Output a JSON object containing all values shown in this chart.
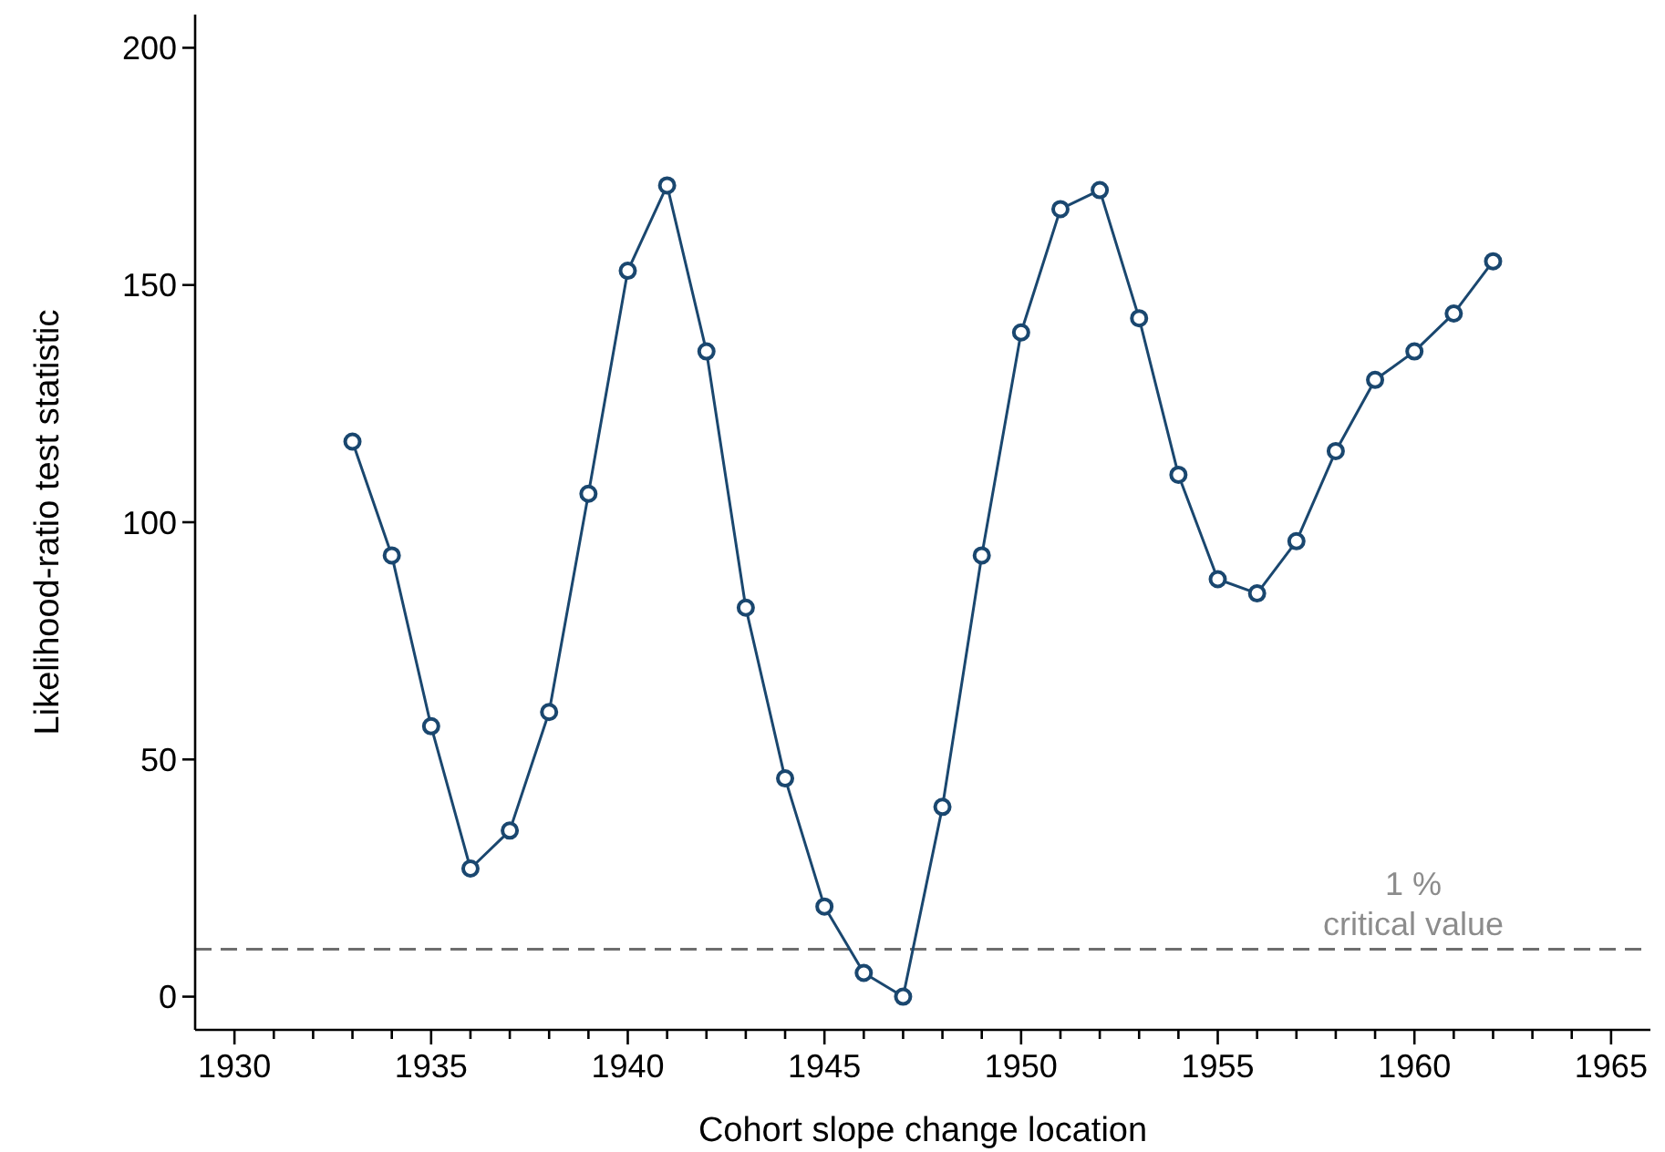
{
  "chart_data": {
    "type": "line",
    "xlabel": "Cohort slope change location",
    "ylabel": "Likelihood-ratio test statistic",
    "x": [
      1933,
      1934,
      1935,
      1936,
      1937,
      1938,
      1939,
      1940,
      1941,
      1942,
      1943,
      1944,
      1945,
      1946,
      1947,
      1948,
      1949,
      1950,
      1951,
      1952,
      1953,
      1954,
      1955,
      1956,
      1957,
      1958,
      1959,
      1960,
      1961,
      1962
    ],
    "series": [
      {
        "color": "#1a476f",
        "values": [
          117,
          93,
          57,
          27,
          35,
          60,
          106,
          153,
          171,
          136,
          82,
          46,
          19,
          5,
          0,
          40,
          93,
          140,
          166,
          170,
          143,
          110,
          88,
          85,
          96,
          115,
          130,
          136,
          144,
          155
        ]
      }
    ],
    "xlim": [
      1929,
      1966
    ],
    "ylim": [
      -7,
      207
    ],
    "xticks": [
      1930,
      {
        "value": 1931,
        "label": null
      },
      {
        "value": 1932,
        "label": null
      },
      {
        "value": 1933,
        "label": null
      },
      {
        "value": 1934,
        "label": null
      },
      1935,
      {
        "value": 1936,
        "label": null
      },
      {
        "value": 1937,
        "label": null
      },
      {
        "value": 1938,
        "label": null
      },
      {
        "value": 1939,
        "label": null
      },
      1940,
      {
        "value": 1941,
        "label": null
      },
      {
        "value": 1942,
        "label": null
      },
      {
        "value": 1943,
        "label": null
      },
      {
        "value": 1944,
        "label": null
      },
      1945,
      {
        "value": 1946,
        "label": null
      },
      {
        "value": 1947,
        "label": null
      },
      {
        "value": 1948,
        "label": null
      },
      {
        "value": 1949,
        "label": null
      },
      1950,
      {
        "value": 1951,
        "label": null
      },
      {
        "value": 1952,
        "label": null
      },
      {
        "value": 1953,
        "label": null
      },
      {
        "value": 1954,
        "label": null
      },
      1955,
      {
        "value": 1956,
        "label": null
      },
      {
        "value": 1957,
        "label": null
      },
      {
        "value": 1958,
        "label": null
      },
      {
        "value": 1959,
        "label": null
      },
      1960,
      {
        "value": 1961,
        "label": null
      },
      {
        "value": 1962,
        "label": null
      },
      {
        "value": 1963,
        "label": null
      },
      {
        "value": 1964,
        "label": null
      },
      1965
    ],
    "yticks": [
      0,
      50,
      100,
      150,
      200
    ],
    "marker": "circle",
    "line_style": "solid",
    "ref_lines": [
      {
        "axis": "y",
        "value": 10,
        "color": "#6e6e6e",
        "line_style": "dashed"
      }
    ],
    "annotations": [
      "1 %\ncritical value"
    ]
  }
}
